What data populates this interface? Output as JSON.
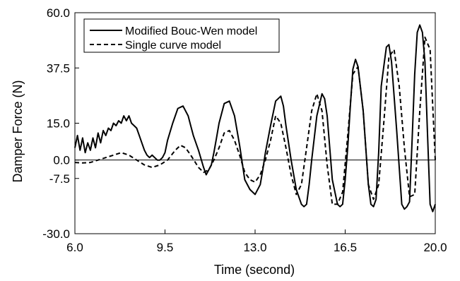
{
  "chart_data": {
    "type": "line",
    "xlabel": "Time (second)",
    "ylabel": "Damper Force (N)",
    "xlim": [
      6.0,
      20.0
    ],
    "ylim": [
      -30.0,
      60.0
    ],
    "x_ticks": [
      6.0,
      9.5,
      13.0,
      16.5,
      20.0
    ],
    "x_tick_labels": [
      "6.0",
      "9.5",
      "13.0",
      "16.5",
      "20.0"
    ],
    "y_ticks": [
      60.0,
      37.5,
      15.0,
      0.0,
      -7.5,
      -30.0
    ],
    "y_tick_labels": [
      "60.0",
      "37.5",
      "15.0",
      "0.0",
      "-7.5",
      "-30.0"
    ],
    "zero_line": true,
    "grid": false,
    "legend_position": "top-left",
    "series": [
      {
        "name": "Modified Bouc-Wen model",
        "line_style": "solid",
        "color": "#000000",
        "x": [
          6.0,
          6.1,
          6.2,
          6.3,
          6.4,
          6.5,
          6.6,
          6.7,
          6.8,
          6.9,
          7.0,
          7.1,
          7.2,
          7.3,
          7.4,
          7.5,
          7.6,
          7.7,
          7.8,
          7.9,
          8.0,
          8.1,
          8.2,
          8.3,
          8.4,
          8.5,
          8.6,
          8.7,
          8.8,
          8.9,
          9.0,
          9.1,
          9.2,
          9.3,
          9.4,
          9.5,
          9.6,
          9.8,
          10.0,
          10.2,
          10.4,
          10.5,
          10.6,
          10.8,
          11.0,
          11.1,
          11.2,
          11.3,
          11.4,
          11.5,
          11.6,
          11.8,
          12.0,
          12.2,
          12.3,
          12.4,
          12.6,
          12.8,
          13.0,
          13.2,
          13.3,
          13.4,
          13.6,
          13.8,
          14.0,
          14.1,
          14.2,
          14.4,
          14.6,
          14.8,
          14.9,
          15.0,
          15.1,
          15.2,
          15.4,
          15.6,
          15.7,
          15.8,
          16.0,
          16.2,
          16.3,
          16.4,
          16.5,
          16.6,
          16.7,
          16.8,
          16.9,
          17.0,
          17.2,
          17.4,
          17.5,
          17.6,
          17.7,
          17.8,
          17.9,
          18.0,
          18.1,
          18.2,
          18.3,
          18.5,
          18.7,
          18.8,
          18.9,
          19.0,
          19.1,
          19.2,
          19.3,
          19.4,
          19.5,
          19.6,
          19.7,
          19.8,
          19.9,
          20.0
        ],
        "values": [
          5,
          10,
          4,
          9,
          3,
          7,
          4,
          9,
          5,
          11,
          7,
          12,
          10,
          13,
          12,
          15,
          14,
          16,
          15,
          18,
          16,
          18,
          15,
          14,
          13,
          10,
          7,
          4,
          2,
          1,
          2,
          1,
          0,
          0,
          1,
          3,
          8,
          15,
          21,
          22,
          18,
          14,
          10,
          4,
          -3,
          -6,
          -4,
          -2,
          3,
          9,
          15,
          23,
          24,
          18,
          12,
          6,
          -8,
          -12,
          -14,
          -10,
          -4,
          3,
          14,
          24,
          26,
          22,
          14,
          0,
          -12,
          -18,
          -19,
          -18,
          -10,
          0,
          18,
          27,
          25,
          18,
          -8,
          -18,
          -19,
          -18,
          -8,
          5,
          22,
          37,
          41,
          38,
          20,
          -10,
          -18,
          -19,
          -16,
          3,
          30,
          38,
          46,
          47,
          40,
          12,
          -18,
          -20,
          -19,
          -17,
          8,
          35,
          52,
          55,
          52,
          40,
          10,
          -18,
          -21,
          -18
        ]
      },
      {
        "name": "Single curve model",
        "line_style": "dashed",
        "color": "#000000",
        "x": [
          6.0,
          6.3,
          6.6,
          6.9,
          7.2,
          7.5,
          7.8,
          8.1,
          8.4,
          8.7,
          9.0,
          9.3,
          9.6,
          9.9,
          10.1,
          10.3,
          10.5,
          10.8,
          11.0,
          11.2,
          11.4,
          11.6,
          11.8,
          12.0,
          12.2,
          12.4,
          12.6,
          12.8,
          13.0,
          13.2,
          13.4,
          13.6,
          13.8,
          14.0,
          14.2,
          14.4,
          14.6,
          14.8,
          15.0,
          15.2,
          15.4,
          15.6,
          15.8,
          16.0,
          16.2,
          16.4,
          16.6,
          16.8,
          17.0,
          17.2,
          17.4,
          17.6,
          17.8,
          18.0,
          18.2,
          18.4,
          18.6,
          18.8,
          19.0,
          19.2,
          19.4,
          19.6,
          19.8,
          20.0
        ],
        "values": [
          -1,
          -1.2,
          -1,
          0,
          1,
          2,
          3,
          2,
          0,
          -2,
          -3,
          -2,
          0,
          4,
          6,
          5,
          2,
          -3,
          -5,
          -4,
          0,
          5,
          11,
          12,
          8,
          2,
          -5,
          -8,
          -9,
          -6,
          0,
          8,
          18,
          15,
          5,
          -6,
          -14,
          -10,
          5,
          20,
          27,
          20,
          -2,
          -18,
          -18,
          -13,
          10,
          35,
          38,
          20,
          -10,
          -16,
          -10,
          15,
          42,
          45,
          30,
          5,
          -15,
          -14,
          20,
          50,
          45,
          0
        ]
      }
    ]
  }
}
